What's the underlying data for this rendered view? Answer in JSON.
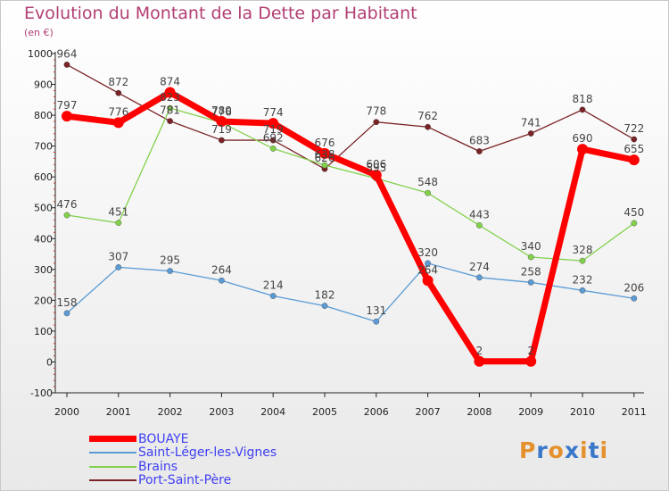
{
  "title": "Evolution du Montant de la Dette par Habitant",
  "subtitle": "(en €)",
  "brand": {
    "text": "Proxiti",
    "letter_colors": [
      "#e4912d",
      "#3977c9",
      "#e4912d",
      "#3977c9",
      "#e4912d",
      "#3977c9",
      "#e4912d"
    ]
  },
  "chart_data": {
    "type": "line",
    "x": [
      "2000",
      "2001",
      "2002",
      "2003",
      "2004",
      "2005",
      "2006",
      "2007",
      "2008",
      "2009",
      "2010",
      "2011"
    ],
    "ylim": [
      -100,
      1000
    ],
    "yticks": [
      "-100",
      "0",
      "100",
      "200",
      "300",
      "400",
      "500",
      "600",
      "700",
      "800",
      "900",
      "1000"
    ],
    "grid": false,
    "legend_position": "bottom-left",
    "series": [
      {
        "name": "BOUAYE",
        "color": "#ff0000",
        "values": [
          797,
          776,
          874,
          780,
          774,
          676,
          606,
          264,
          2,
          2,
          690,
          655
        ],
        "labels": [
          "797",
          "776",
          "874",
          "780",
          "774",
          "676",
          "606",
          "264",
          "2",
          "2",
          "690",
          "655"
        ]
      },
      {
        "name": "Saint-Léger-les-Vignes",
        "color": "#5b9bd5",
        "values": [
          158,
          307,
          295,
          264,
          214,
          182,
          131,
          320,
          274,
          258,
          232,
          206
        ],
        "labels": [
          "158",
          "307",
          "295",
          "264",
          "214",
          "182",
          "131",
          "320",
          "274",
          "258",
          "232",
          "206"
        ]
      },
      {
        "name": "Brains",
        "color": "#82d14b",
        "values": [
          476,
          451,
          823,
          776,
          692,
          638,
          595,
          548,
          443,
          340,
          328,
          450
        ],
        "labels": [
          "476",
          "451",
          "823",
          "776",
          "692",
          "638",
          "595",
          "548",
          "443",
          "340",
          "328",
          "450"
        ]
      },
      {
        "name": "Port-Saint-Père",
        "color": "#7a2326",
        "values": [
          964,
          872,
          781,
          719,
          719,
          626,
          778,
          762,
          683,
          741,
          818,
          722
        ],
        "labels": [
          "964",
          "872",
          "781",
          "719",
          "719",
          "626",
          "778",
          "762",
          "683",
          "741",
          "818",
          "722"
        ]
      }
    ]
  }
}
